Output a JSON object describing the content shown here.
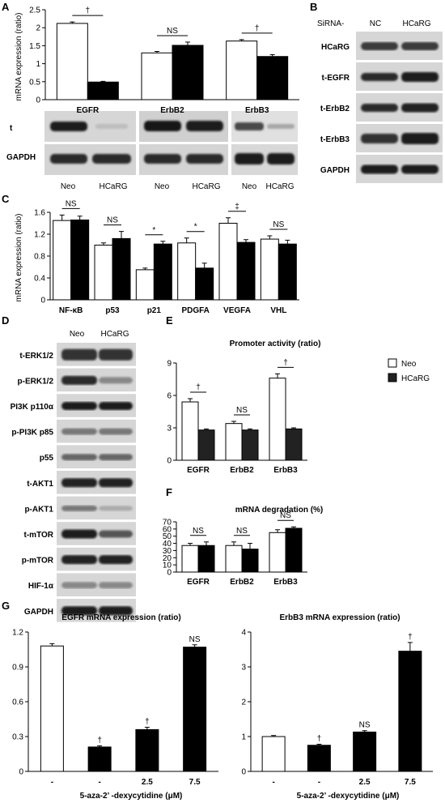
{
  "panels": {
    "A": {
      "letter": "A",
      "ylabel": "mRNA expression (ratio)",
      "blot_labels": [
        "t",
        "GAPDH"
      ],
      "lane_labels": [
        "Neo",
        "HCaRG"
      ]
    },
    "B": {
      "letter": "B",
      "header": "SiRNA-",
      "lane_labels": [
        "NC",
        "HCaRG"
      ],
      "rows": [
        "HCaRG",
        "t-EGFR",
        "t-ErbB2",
        "t-ErbB3",
        "GAPDH"
      ]
    },
    "C": {
      "letter": "C",
      "ylabel": "mRNA expression (ratio)"
    },
    "D": {
      "letter": "D",
      "lane_labels": [
        "Neo",
        "HCaRG"
      ],
      "rows": [
        "t-ERK1/2",
        "p-ERK1/2",
        "PI3K p110α",
        "p-PI3K p85",
        "p55",
        "t-AKT1",
        "p-AKT1",
        "t-mTOR",
        "p-mTOR",
        "HIF-1α",
        "GAPDH"
      ]
    },
    "E": {
      "letter": "E",
      "title": "Promoter activity (ratio)",
      "legend": [
        "Neo",
        "HCaRG"
      ]
    },
    "F": {
      "letter": "F",
      "title": "mRNA degradation (%)"
    },
    "G": {
      "letter": "G",
      "xlabel": "5-aza-2’ -dexycytidine (μM)"
    }
  },
  "colors": {
    "open": "#ffffff",
    "filled": "#000000",
    "dark_filled": "#222222"
  },
  "chart_data": [
    {
      "id": "A",
      "type": "bar",
      "categories": [
        "EGFR",
        "ErbB2",
        "ErbB3"
      ],
      "series": [
        {
          "name": "Neo",
          "values": [
            2.12,
            1.3,
            1.63
          ],
          "errors": [
            0.04,
            0.04,
            0.04
          ]
        },
        {
          "name": "HCaRG",
          "values": [
            0.49,
            1.51,
            1.2
          ],
          "errors": [
            0.02,
            0.09,
            0.05
          ]
        }
      ],
      "ylim": [
        0,
        2.5
      ],
      "yticks": [
        "0",
        "0.5",
        "1",
        "1.5",
        "2",
        "2.5"
      ],
      "significance": [
        "†",
        "NS",
        "†"
      ]
    },
    {
      "id": "C",
      "type": "bar",
      "categories": [
        "NF-κB",
        "p53",
        "p21",
        "PDGFA",
        "VEGFA",
        "VHL"
      ],
      "series": [
        {
          "name": "Neo",
          "values": [
            1.45,
            1.0,
            0.55,
            1.04,
            1.4,
            1.11
          ],
          "errors": [
            0.1,
            0.04,
            0.03,
            0.09,
            0.1,
            0.06
          ]
        },
        {
          "name": "HCaRG",
          "values": [
            1.46,
            1.12,
            1.02,
            0.58,
            1.05,
            1.02
          ],
          "errors": [
            0.07,
            0.13,
            0.05,
            0.09,
            0.05,
            0.07
          ]
        }
      ],
      "ylim": [
        0,
        1.6
      ],
      "yticks": [
        "0",
        "0.4",
        "0.8",
        "1.2",
        "1.6"
      ],
      "significance": [
        "NS",
        "NS",
        "*",
        "*",
        "‡",
        "NS"
      ]
    },
    {
      "id": "E",
      "type": "bar",
      "categories": [
        "EGFR",
        "ErbB2",
        "ErbB3"
      ],
      "series": [
        {
          "name": "Neo",
          "values": [
            5.4,
            3.4,
            7.6
          ],
          "errors": [
            0.3,
            0.2,
            0.4
          ]
        },
        {
          "name": "HCaRG",
          "values": [
            2.8,
            2.8,
            2.9
          ],
          "errors": [
            0.1,
            0.1,
            0.1
          ]
        }
      ],
      "ylim": [
        0,
        9
      ],
      "yticks": [
        "0",
        "3",
        "6",
        "9"
      ],
      "significance": [
        "†",
        "NS",
        "†"
      ]
    },
    {
      "id": "F",
      "type": "bar",
      "categories": [
        "EGFR",
        "ErbB2",
        "ErbB3"
      ],
      "series": [
        {
          "name": "Neo",
          "values": [
            37,
            37,
            55
          ],
          "errors": [
            3,
            5,
            4
          ]
        },
        {
          "name": "HCaRG",
          "values": [
            37,
            32,
            61
          ],
          "errors": [
            5,
            8,
            2
          ]
        }
      ],
      "ylim": [
        0,
        70
      ],
      "yticks": [
        "0",
        "10",
        "20",
        "30",
        "40",
        "50",
        "60",
        "70"
      ],
      "significance": [
        "NS",
        "NS",
        "NS"
      ]
    },
    {
      "id": "G1",
      "type": "bar",
      "title": "EGFR mRNA expression (ratio)",
      "categories": [
        "-",
        "-",
        "2.5",
        "7.5"
      ],
      "values": [
        1.08,
        0.21,
        0.36,
        1.07
      ],
      "errors": [
        0.02,
        0.01,
        0.02,
        0.02
      ],
      "fills": [
        "open",
        "filled",
        "filled",
        "filled"
      ],
      "ylim": [
        0,
        1.2
      ],
      "yticks": [
        "0",
        "0.3",
        "0.6",
        "0.9",
        "1.2"
      ],
      "significance": [
        "",
        "†",
        "†",
        "NS"
      ]
    },
    {
      "id": "G2",
      "type": "bar",
      "title": "ErbB3 mRNA expression (ratio)",
      "categories": [
        "-",
        "-",
        "2.5",
        "7.5"
      ],
      "values": [
        1.0,
        0.75,
        1.13,
        3.45
      ],
      "errors": [
        0.03,
        0.03,
        0.04,
        0.25
      ],
      "fills": [
        "open",
        "filled",
        "filled",
        "filled"
      ],
      "ylim": [
        0,
        4
      ],
      "yticks": [
        "0",
        "1",
        "2",
        "3",
        "4"
      ],
      "significance": [
        "",
        "†",
        "NS",
        "†"
      ]
    }
  ]
}
